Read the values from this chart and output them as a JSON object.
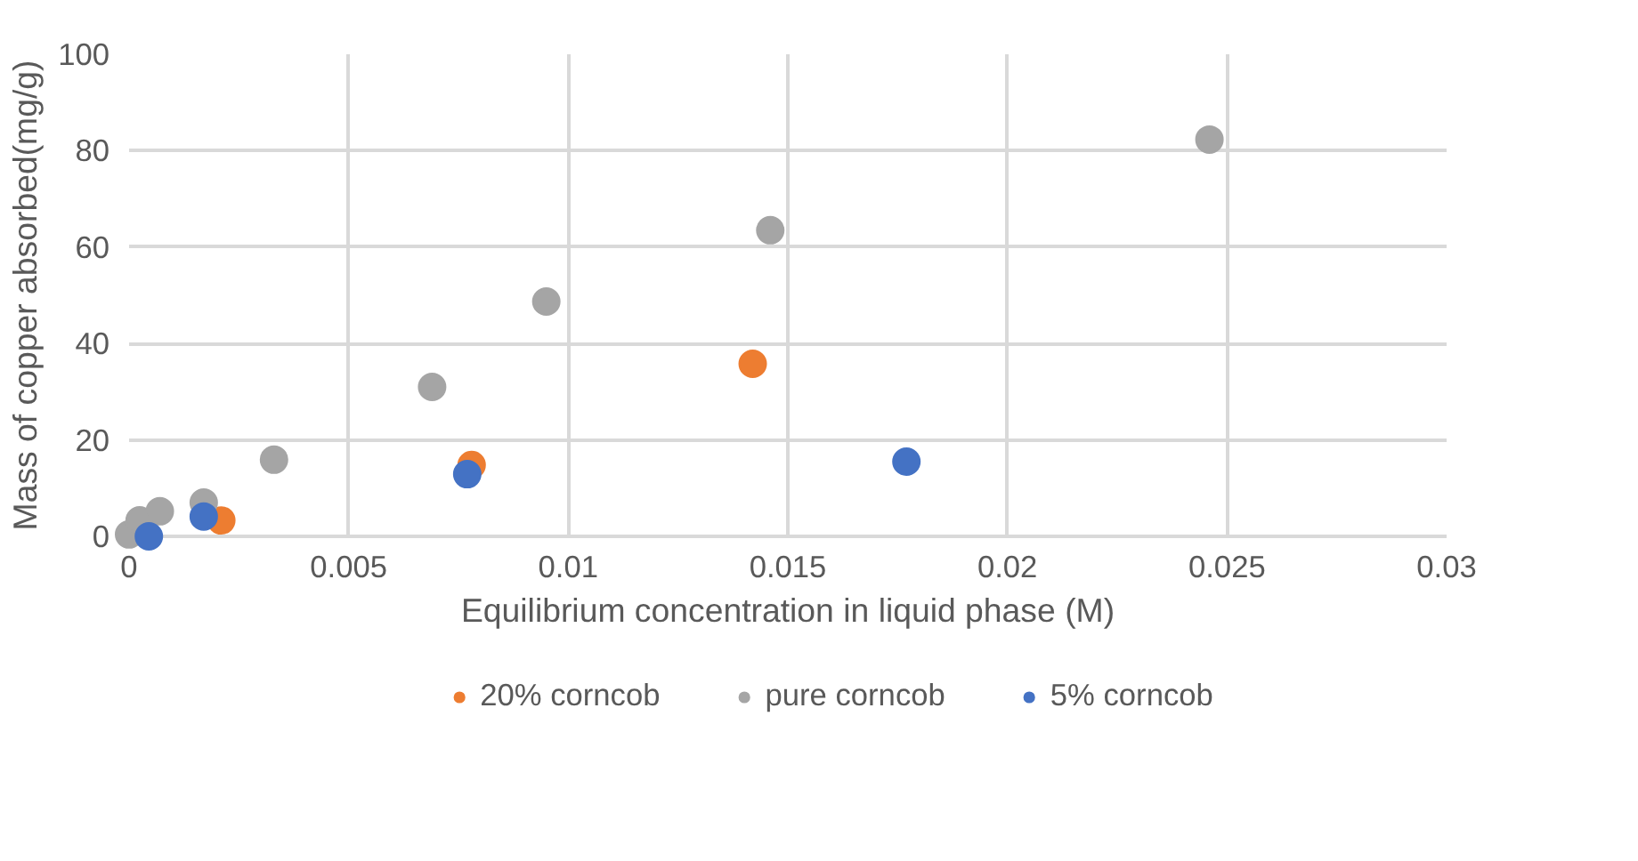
{
  "chart_data": {
    "type": "scatter",
    "xlabel": "Equilibrium concentration in liquid phase (M)",
    "ylabel": "Mass of copper absorbed(mg/g)",
    "xlim": [
      0,
      0.03
    ],
    "xticks": [
      0,
      0.005,
      0.01,
      0.015,
      0.02,
      0.025,
      0.03
    ],
    "ylim": [
      0,
      100
    ],
    "yticks": [
      0,
      20,
      40,
      60,
      80,
      100
    ],
    "grid": true,
    "legend": "bottom",
    "marker": "circle",
    "series": [
      {
        "name": "20% corncob",
        "color": "#ed7d31",
        "x": [
          0.0021,
          0.0078,
          0.0142
        ],
        "values": [
          3.3,
          14.8,
          35.8
        ]
      },
      {
        "name": "pure corncob",
        "color": "#a5a5a5",
        "x": [
          0.0,
          0.00024,
          0.0007,
          0.0017,
          0.0033,
          0.0069,
          0.0095,
          0.0146,
          0.0246
        ],
        "values": [
          0.4,
          3.3,
          5.2,
          7.0,
          15.9,
          31.0,
          48.7,
          63.5,
          82.3
        ]
      },
      {
        "name": "5% corncob",
        "color": "#4472c4",
        "x": [
          0.00045,
          0.0017,
          0.0077,
          0.0177
        ],
        "values": [
          0.0,
          4.1,
          12.9,
          15.5
        ]
      }
    ]
  }
}
